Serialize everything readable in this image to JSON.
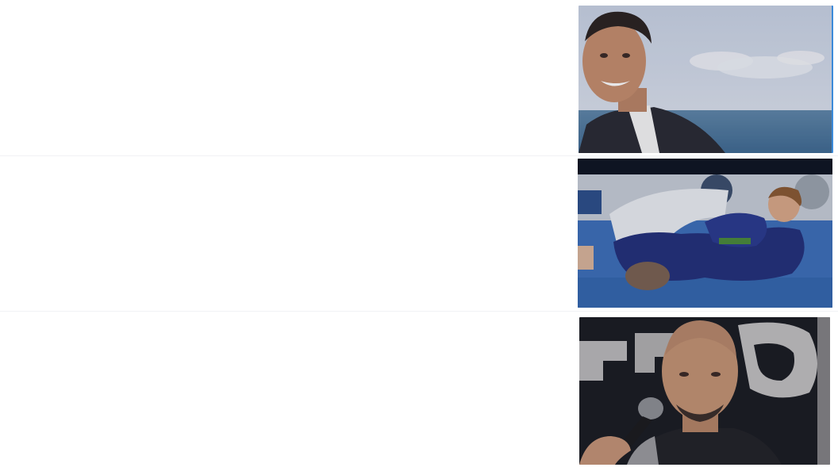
{
  "results": [
    {
      "id": "r1",
      "description": "",
      "thumb_icon": "portrait-smiling-man-sea-photo"
    },
    {
      "id": "r2",
      "description": "",
      "thumb_icon": "jiu-jitsu-grappling-photo"
    },
    {
      "id": "r3",
      "description": "",
      "thumb_icon": "man-with-microphone-photo"
    }
  ],
  "colors": {
    "background": "#ffffff",
    "divider": "#f1f2f5",
    "accent_border": "#3b8ad9"
  }
}
